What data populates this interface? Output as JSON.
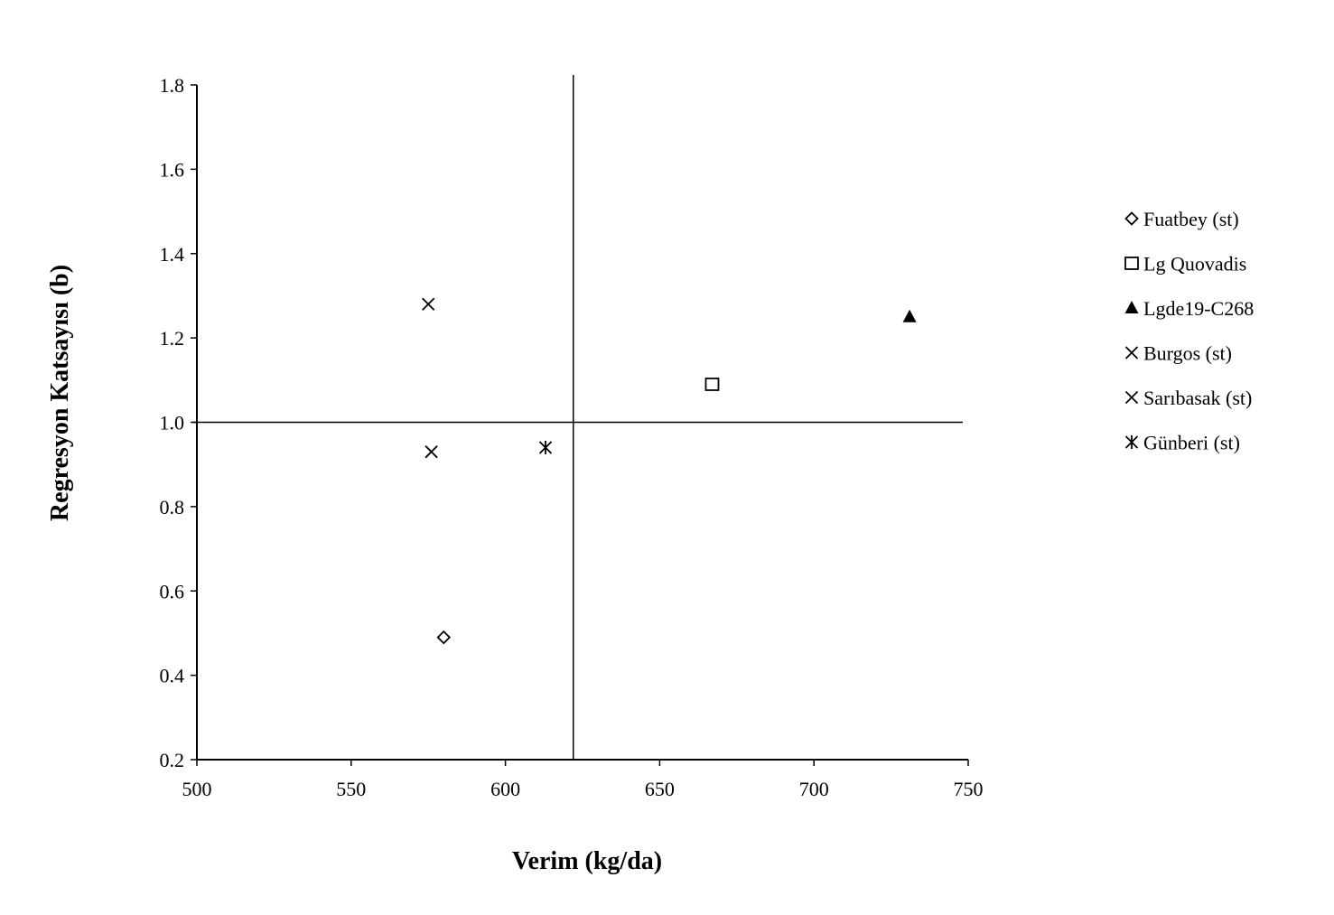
{
  "chart_data": {
    "type": "scatter",
    "title": "",
    "xlabel": "Verim (kg/da)",
    "ylabel": "Regresyon Katsayısı (b)",
    "xlim": [
      500,
      750
    ],
    "ylim": [
      0.2,
      1.8
    ],
    "xticks": [
      500,
      550,
      600,
      650,
      700,
      750
    ],
    "yticks": [
      0.2,
      0.4,
      0.6,
      0.8,
      1.0,
      1.2,
      1.4,
      1.6,
      1.8
    ],
    "xtick_labels": [
      "500",
      "550",
      "600",
      "650",
      "700",
      "750"
    ],
    "ytick_labels": [
      "0.2",
      "0.4",
      "0.6",
      "0.8",
      "1.0",
      "1.2",
      "1.4",
      "1.6",
      "1.8"
    ],
    "reference_lines": {
      "x": 622,
      "y": 1.0
    },
    "grid": false,
    "legend_position": "right",
    "series": [
      {
        "name": "Fuatbey (st)",
        "marker": "diamond-open",
        "x": [
          580
        ],
        "y": [
          0.49
        ]
      },
      {
        "name": "Lg Quovadis",
        "marker": "square-open",
        "x": [
          667
        ],
        "y": [
          1.09
        ]
      },
      {
        "name": "Lgde19-C268",
        "marker": "triangle-filled",
        "x": [
          731
        ],
        "y": [
          1.25
        ]
      },
      {
        "name": "Burgos (st)",
        "marker": "x",
        "x": [
          576
        ],
        "y": [
          0.93
        ]
      },
      {
        "name": "Sarıbasak (st)",
        "marker": "x",
        "x": [
          575
        ],
        "y": [
          1.28
        ]
      },
      {
        "name": "Günberi (st)",
        "marker": "asterisk",
        "x": [
          613
        ],
        "y": [
          0.94
        ]
      }
    ]
  }
}
